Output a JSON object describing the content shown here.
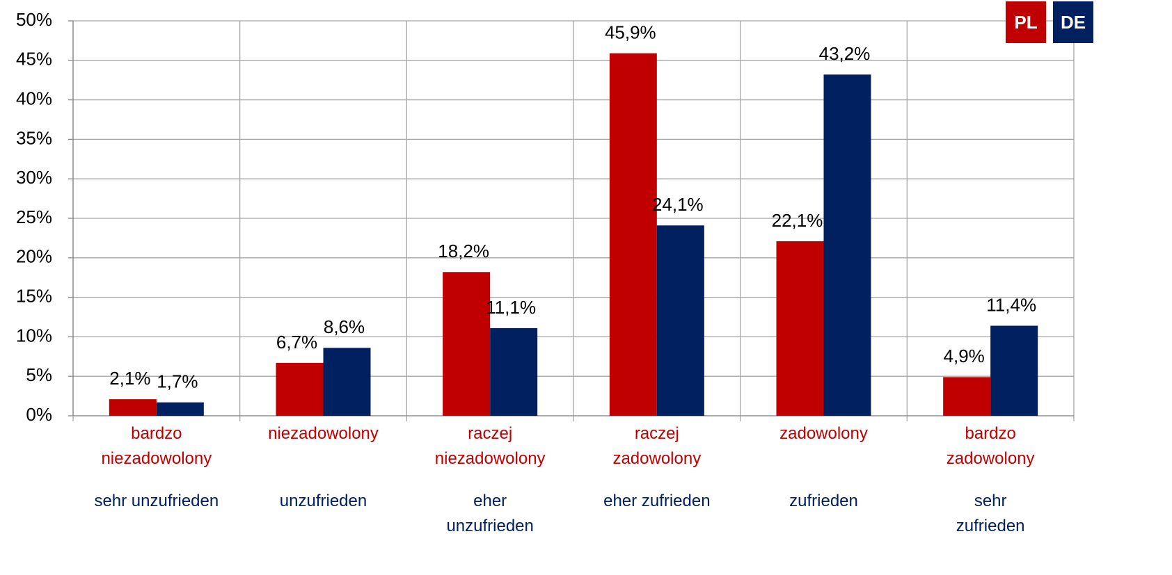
{
  "chart_data": {
    "type": "bar",
    "categories": [
      "bardzo\nniezadowolony",
      "niezadowolony",
      "raczej\nniezadowolony",
      "raczej\nzadowolony",
      "zadowolony",
      "bardzo\nzadowolony"
    ],
    "categories_de": [
      "sehr unzufrieden",
      "unzufrieden",
      "eher\nunzufrieden",
      "eher zufrieden",
      "zufrieden",
      "sehr\nzufrieden"
    ],
    "series": [
      {
        "name": "PL",
        "color": "#c00000",
        "values": [
          2.1,
          6.7,
          18.2,
          45.9,
          22.1,
          4.9
        ],
        "value_labels": [
          "2,1%",
          "6,7%",
          "18,2%",
          "45,9%",
          "22,1%",
          "4,9%"
        ]
      },
      {
        "name": "DE",
        "color": "#002060",
        "values": [
          1.7,
          8.6,
          11.1,
          24.1,
          43.2,
          11.4
        ],
        "value_labels": [
          "1,7%",
          "8,6%",
          "11,1%",
          "24,1%",
          "43,2%",
          "11,4%"
        ]
      }
    ],
    "ylim": [
      0,
      50
    ],
    "yticks": [
      {
        "value": 0,
        "label": "0%"
      },
      {
        "value": 5,
        "label": "5%"
      },
      {
        "value": 10,
        "label": "10%"
      },
      {
        "value": 15,
        "label": "15%"
      },
      {
        "value": 20,
        "label": "20%"
      },
      {
        "value": 25,
        "label": "25%"
      },
      {
        "value": 30,
        "label": "30%"
      },
      {
        "value": 35,
        "label": "35%"
      },
      {
        "value": 40,
        "label": "40%"
      },
      {
        "value": 45,
        "label": "45%"
      },
      {
        "value": 50,
        "label": "50%"
      }
    ],
    "grid": true
  }
}
